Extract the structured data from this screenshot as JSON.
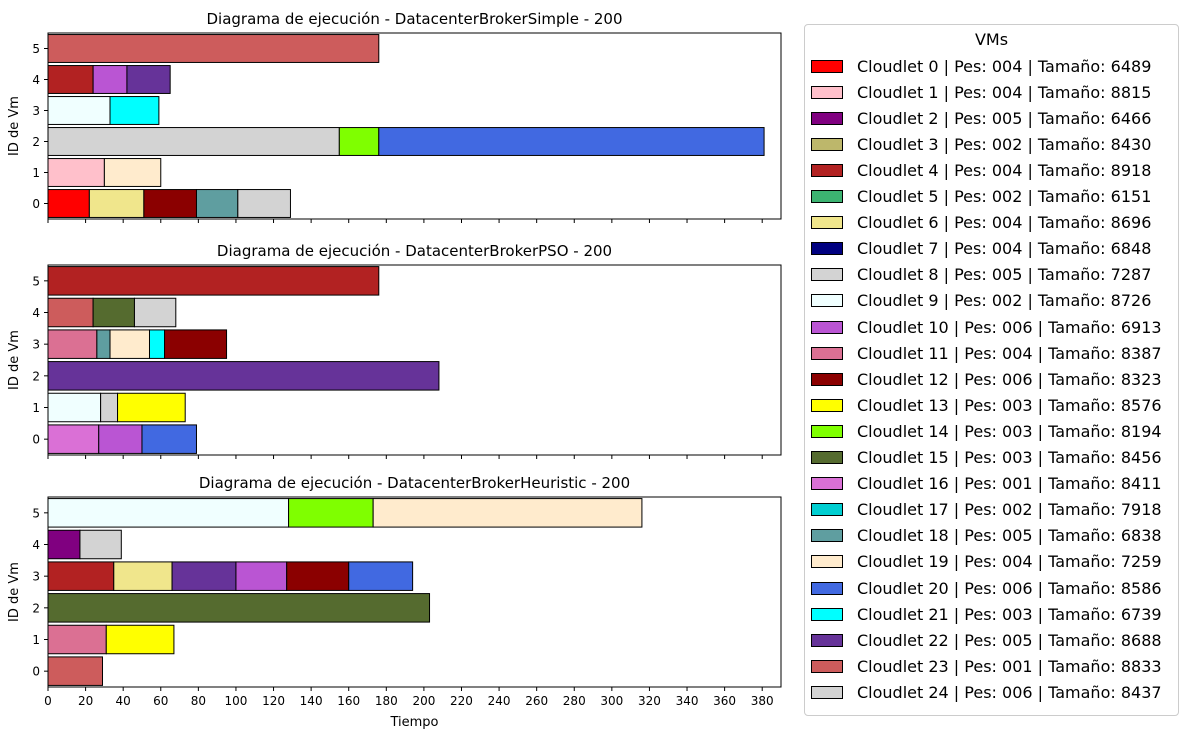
{
  "chart_data": {
    "type": "bar",
    "orientation": "horizontal",
    "legend": {
      "title": "VMs",
      "placement": "right",
      "items": [
        {
          "label": "Cloudlet 0 | Pes: 004 | Tamaño: 6489",
          "color": "#ff0000"
        },
        {
          "label": "Cloudlet 1 | Pes: 004 | Tamaño: 8815",
          "color": "#ffc0cb"
        },
        {
          "label": "Cloudlet 2 | Pes: 005 | Tamaño: 6466",
          "color": "#800080"
        },
        {
          "label": "Cloudlet 3 | Pes: 002 | Tamaño: 8430",
          "color": "#bdb76b"
        },
        {
          "label": "Cloudlet 4 | Pes: 004 | Tamaño: 8918",
          "color": "#b22222"
        },
        {
          "label": "Cloudlet 5 | Pes: 002 | Tamaño: 6151",
          "color": "#3cb371"
        },
        {
          "label": "Cloudlet 6 | Pes: 004 | Tamaño: 8696",
          "color": "#f0e68c"
        },
        {
          "label": "Cloudlet 7 | Pes: 004 | Tamaño: 6848",
          "color": "#000080"
        },
        {
          "label": "Cloudlet 8 | Pes: 005 | Tamaño: 7287",
          "color": "#d3d3d3"
        },
        {
          "label": "Cloudlet 9 | Pes: 002 | Tamaño: 8726",
          "color": "#f0ffff"
        },
        {
          "label": "Cloudlet 10 | Pes: 006 | Tamaño: 6913",
          "color": "#ba55d3"
        },
        {
          "label": "Cloudlet 11 | Pes: 004 | Tamaño: 8387",
          "color": "#db7093"
        },
        {
          "label": "Cloudlet 12 | Pes: 006 | Tamaño: 8323",
          "color": "#8b0000"
        },
        {
          "label": "Cloudlet 13 | Pes: 003 | Tamaño: 8576",
          "color": "#ffff00"
        },
        {
          "label": "Cloudlet 14 | Pes: 003 | Tamaño: 8194",
          "color": "#7fff00"
        },
        {
          "label": "Cloudlet 15 | Pes: 003 | Tamaño: 8456",
          "color": "#556b2f"
        },
        {
          "label": "Cloudlet 16 | Pes: 001 | Tamaño: 8411",
          "color": "#da70d6"
        },
        {
          "label": "Cloudlet 17 | Pes: 002 | Tamaño: 7918",
          "color": "#00ced1"
        },
        {
          "label": "Cloudlet 18 | Pes: 005 | Tamaño: 6838",
          "color": "#5f9ea0"
        },
        {
          "label": "Cloudlet 19 | Pes: 004 | Tamaño: 7259",
          "color": "#ffebcd"
        },
        {
          "label": "Cloudlet 20 | Pes: 006 | Tamaño: 8586",
          "color": "#4169e1"
        },
        {
          "label": "Cloudlet 21 | Pes: 003 | Tamaño: 6739",
          "color": "#00ffff"
        },
        {
          "label": "Cloudlet 22 | Pes: 005 | Tamaño: 8688",
          "color": "#663399"
        },
        {
          "label": "Cloudlet 23 | Pes: 001 | Tamaño: 8833",
          "color": "#cd5c5c"
        },
        {
          "label": "Cloudlet 24 | Pes: 006 | Tamaño: 8437",
          "color": "#d3d3d3"
        }
      ]
    },
    "xlabel": "Tiempo",
    "xlim": [
      0,
      390
    ],
    "xticks": [
      0,
      20,
      40,
      60,
      80,
      100,
      120,
      140,
      160,
      180,
      200,
      220,
      240,
      260,
      280,
      300,
      320,
      340,
      360,
      380
    ],
    "grid": false,
    "panels": [
      {
        "title": "Diagrama de ejecución - DatacenterBrokerSimple - 200",
        "ylabel": "ID de Vm",
        "yticks": [
          0,
          1,
          2,
          3,
          4,
          5
        ],
        "bars": [
          {
            "vm": 0,
            "cloudlet": 0,
            "start": 0,
            "end": 22
          },
          {
            "vm": 0,
            "cloudlet": 6,
            "start": 22,
            "end": 51
          },
          {
            "vm": 0,
            "cloudlet": 12,
            "start": 51,
            "end": 79
          },
          {
            "vm": 0,
            "cloudlet": 18,
            "start": 79,
            "end": 101
          },
          {
            "vm": 0,
            "cloudlet": 24,
            "start": 101,
            "end": 129
          },
          {
            "vm": 1,
            "cloudlet": 1,
            "start": 0,
            "end": 30
          },
          {
            "vm": 1,
            "cloudlet": 19,
            "start": 30,
            "end": 60
          },
          {
            "vm": 2,
            "cloudlet": 8,
            "start": 0,
            "end": 155
          },
          {
            "vm": 2,
            "cloudlet": 14,
            "start": 155,
            "end": 176
          },
          {
            "vm": 2,
            "cloudlet": 20,
            "start": 176,
            "end": 381
          },
          {
            "vm": 3,
            "cloudlet": 9,
            "start": 0,
            "end": 33
          },
          {
            "vm": 3,
            "cloudlet": 21,
            "start": 33,
            "end": 59
          },
          {
            "vm": 4,
            "cloudlet": 4,
            "start": 0,
            "end": 24
          },
          {
            "vm": 4,
            "cloudlet": 10,
            "start": 24,
            "end": 42
          },
          {
            "vm": 4,
            "cloudlet": 22,
            "start": 42,
            "end": 65
          },
          {
            "vm": 5,
            "cloudlet": 23,
            "start": 0,
            "end": 176
          }
        ]
      },
      {
        "title": "Diagrama de ejecución - DatacenterBrokerPSO - 200",
        "ylabel": "ID de Vm",
        "yticks": [
          0,
          1,
          2,
          3,
          4,
          5
        ],
        "bars": [
          {
            "vm": 0,
            "cloudlet": 16,
            "start": 0,
            "end": 27
          },
          {
            "vm": 0,
            "cloudlet": 10,
            "start": 27,
            "end": 50
          },
          {
            "vm": 0,
            "cloudlet": 20,
            "start": 50,
            "end": 79
          },
          {
            "vm": 1,
            "cloudlet": 9,
            "start": 0,
            "end": 28
          },
          {
            "vm": 1,
            "cloudlet": 24,
            "start": 28,
            "end": 37
          },
          {
            "vm": 1,
            "cloudlet": 13,
            "start": 37,
            "end": 73
          },
          {
            "vm": 2,
            "cloudlet": 22,
            "start": 0,
            "end": 208
          },
          {
            "vm": 3,
            "cloudlet": 11,
            "start": 0,
            "end": 26
          },
          {
            "vm": 3,
            "cloudlet": 18,
            "start": 26,
            "end": 33
          },
          {
            "vm": 3,
            "cloudlet": 19,
            "start": 33,
            "end": 54
          },
          {
            "vm": 3,
            "cloudlet": 21,
            "start": 54,
            "end": 62
          },
          {
            "vm": 3,
            "cloudlet": 12,
            "start": 62,
            "end": 95
          },
          {
            "vm": 4,
            "cloudlet": 23,
            "start": 0,
            "end": 24
          },
          {
            "vm": 4,
            "cloudlet": 15,
            "start": 24,
            "end": 46
          },
          {
            "vm": 4,
            "cloudlet": 8,
            "start": 46,
            "end": 68
          },
          {
            "vm": 5,
            "cloudlet": 4,
            "start": 0,
            "end": 176
          }
        ]
      },
      {
        "title": "Diagrama de ejecución - DatacenterBrokerHeuristic - 200",
        "ylabel": "ID de Vm",
        "yticks": [
          0,
          1,
          2,
          3,
          4,
          5
        ],
        "bars": [
          {
            "vm": 0,
            "cloudlet": 23,
            "start": 0,
            "end": 29
          },
          {
            "vm": 1,
            "cloudlet": 11,
            "start": 0,
            "end": 31
          },
          {
            "vm": 1,
            "cloudlet": 13,
            "start": 31,
            "end": 67
          },
          {
            "vm": 2,
            "cloudlet": 15,
            "start": 0,
            "end": 203
          },
          {
            "vm": 3,
            "cloudlet": 4,
            "start": 0,
            "end": 35
          },
          {
            "vm": 3,
            "cloudlet": 6,
            "start": 35,
            "end": 66
          },
          {
            "vm": 3,
            "cloudlet": 22,
            "start": 66,
            "end": 100
          },
          {
            "vm": 3,
            "cloudlet": 10,
            "start": 100,
            "end": 127
          },
          {
            "vm": 3,
            "cloudlet": 12,
            "start": 127,
            "end": 160
          },
          {
            "vm": 3,
            "cloudlet": 20,
            "start": 160,
            "end": 194
          },
          {
            "vm": 4,
            "cloudlet": 2,
            "start": 0,
            "end": 17
          },
          {
            "vm": 4,
            "cloudlet": 8,
            "start": 17,
            "end": 39
          },
          {
            "vm": 5,
            "cloudlet": 9,
            "start": 0,
            "end": 128
          },
          {
            "vm": 5,
            "cloudlet": 14,
            "start": 128,
            "end": 173
          },
          {
            "vm": 5,
            "cloudlet": 19,
            "start": 173,
            "end": 316
          }
        ]
      }
    ]
  }
}
